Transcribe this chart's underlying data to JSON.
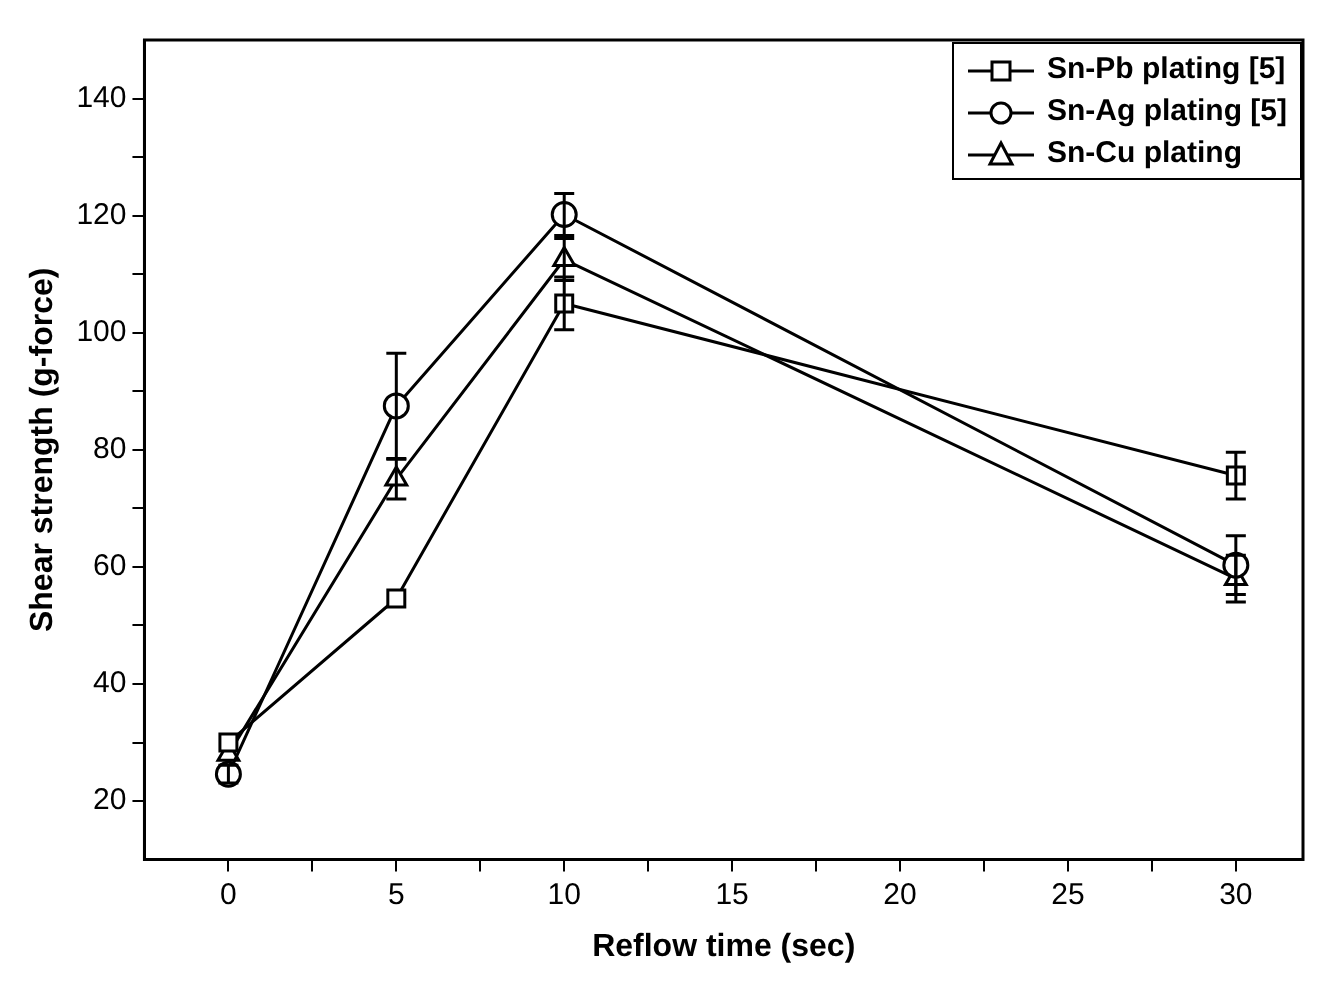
{
  "chart_data": {
    "type": "line",
    "xlabel": "Reflow time (sec)",
    "ylabel": "Shear strength (g-force)",
    "x": [
      0,
      5,
      10,
      30
    ],
    "series": [
      {
        "name": "Sn-Pb plating [5]",
        "color": "#000000",
        "marker": "square",
        "values": [
          30,
          54.6,
          105,
          75.6
        ],
        "errors": [
          null,
          null,
          4.5,
          4
        ]
      },
      {
        "name": "Sn-Ag plating [5]",
        "color": "#000000",
        "marker": "circle",
        "values": [
          24.6,
          87.5,
          120.2,
          60.3
        ],
        "errors": [
          1.5,
          9,
          3.6,
          5
        ]
      },
      {
        "name": "Sn-Cu plating",
        "color": "#000000",
        "marker": "triangle",
        "values": [
          28,
          75,
          112.5,
          58
        ],
        "errors": [
          null,
          3.4,
          3.6,
          4
        ]
      }
    ],
    "xlim": [
      -2.5,
      32
    ],
    "ylim": [
      10,
      150
    ],
    "xticks": [
      0,
      {
        "value": 2.5,
        "label": null
      },
      5,
      {
        "value": 7.5,
        "label": null
      },
      10,
      {
        "value": 12.5,
        "label": null
      },
      15,
      {
        "value": 17.5,
        "label": null
      },
      20,
      {
        "value": 22.5,
        "label": null
      },
      25,
      {
        "value": 27.5,
        "label": null
      },
      30
    ],
    "yticks": [
      20,
      {
        "value": 30,
        "label": null
      },
      40,
      {
        "value": 50,
        "label": null
      },
      60,
      {
        "value": 70,
        "label": null
      },
      80,
      {
        "value": 90,
        "label": null
      },
      100,
      {
        "value": 110,
        "label": null
      },
      120,
      {
        "value": 130,
        "label": null
      },
      140
    ],
    "grid": false,
    "legend": "top right",
    "line_style": "solid"
  }
}
